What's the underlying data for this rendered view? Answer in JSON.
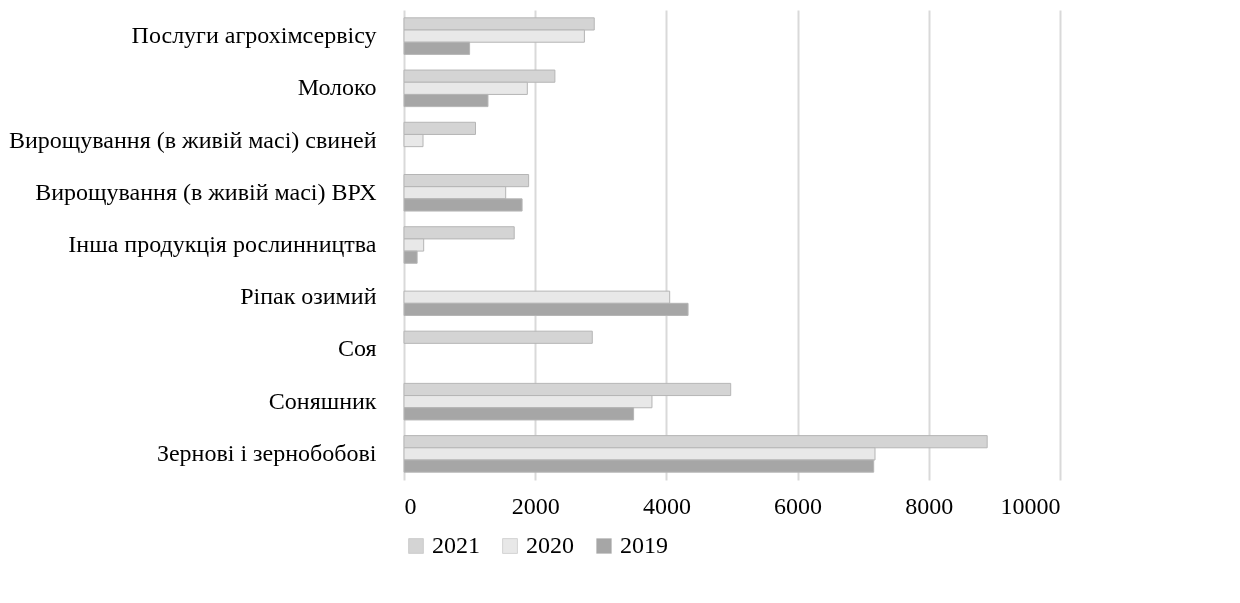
{
  "chart_data": {
    "type": "bar",
    "orientation": "horizontal",
    "categories": [
      "Послуги агрохімсервісу",
      "Молоко",
      "Вирощування (в живій масі) свиней",
      "Вирощування (в живій масі) ВРХ",
      "Інша продукція рослинництва",
      "Ріпак озимий",
      "Соя",
      "Соняшник",
      "Зернові і зернобобові"
    ],
    "series": [
      {
        "name": "2021",
        "color": "#d4d4d4",
        "values": [
          2900,
          2300,
          1090,
          1900,
          1680,
          null,
          2870,
          4980,
          8890
        ]
      },
      {
        "name": "2020",
        "color": "#e8e8e8",
        "values": [
          2750,
          1880,
          290,
          1550,
          300,
          4050,
          null,
          3780,
          7180
        ]
      },
      {
        "name": "2019",
        "color": "#a6a6a6",
        "values": [
          1000,
          1280,
          null,
          1800,
          200,
          4330,
          null,
          3500,
          7160
        ]
      }
    ],
    "xlim": [
      0,
      10000
    ],
    "xticks": [
      0,
      2000,
      4000,
      6000,
      8000,
      10000
    ],
    "grid": "x",
    "legend": "bottom"
  }
}
